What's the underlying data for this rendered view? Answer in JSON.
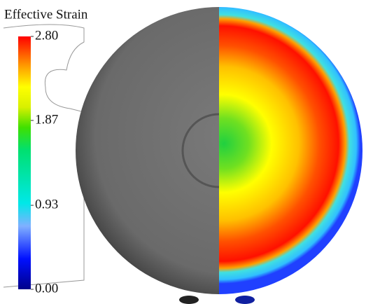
{
  "colorbar": {
    "title": "Effective Strain",
    "range": [
      0,
      2.8
    ],
    "ticks": [
      {
        "value": 2.8,
        "label": "2.80"
      },
      {
        "value": 1.87,
        "label": "1.87"
      },
      {
        "value": 0.93,
        "label": "0.93"
      },
      {
        "value": 0,
        "label": "0.00"
      }
    ]
  }
}
